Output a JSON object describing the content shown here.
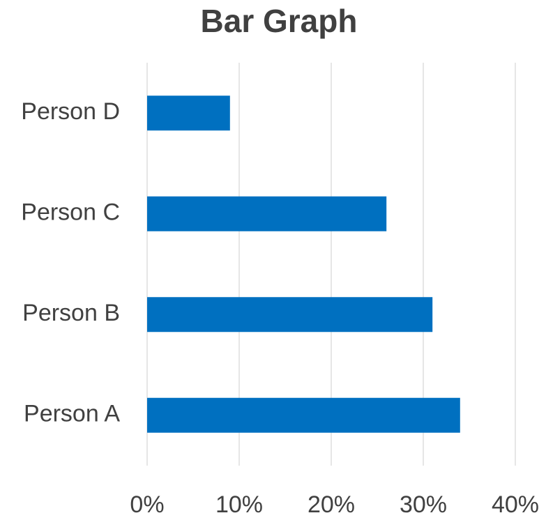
{
  "chart_data": {
    "type": "bar",
    "orientation": "horizontal",
    "title": "Bar Graph",
    "categories": [
      "Person A",
      "Person B",
      "Person C",
      "Person D"
    ],
    "values": [
      34,
      31,
      26,
      9
    ],
    "color": "#0070c0",
    "xlim": [
      0,
      40
    ],
    "xticks": [
      {
        "value": 0,
        "label": "0%"
      },
      {
        "value": 10,
        "label": "10%"
      },
      {
        "value": 20,
        "label": "20%"
      },
      {
        "value": 30,
        "label": "30%"
      },
      {
        "value": 40,
        "label": "40%"
      }
    ],
    "grid": true
  }
}
